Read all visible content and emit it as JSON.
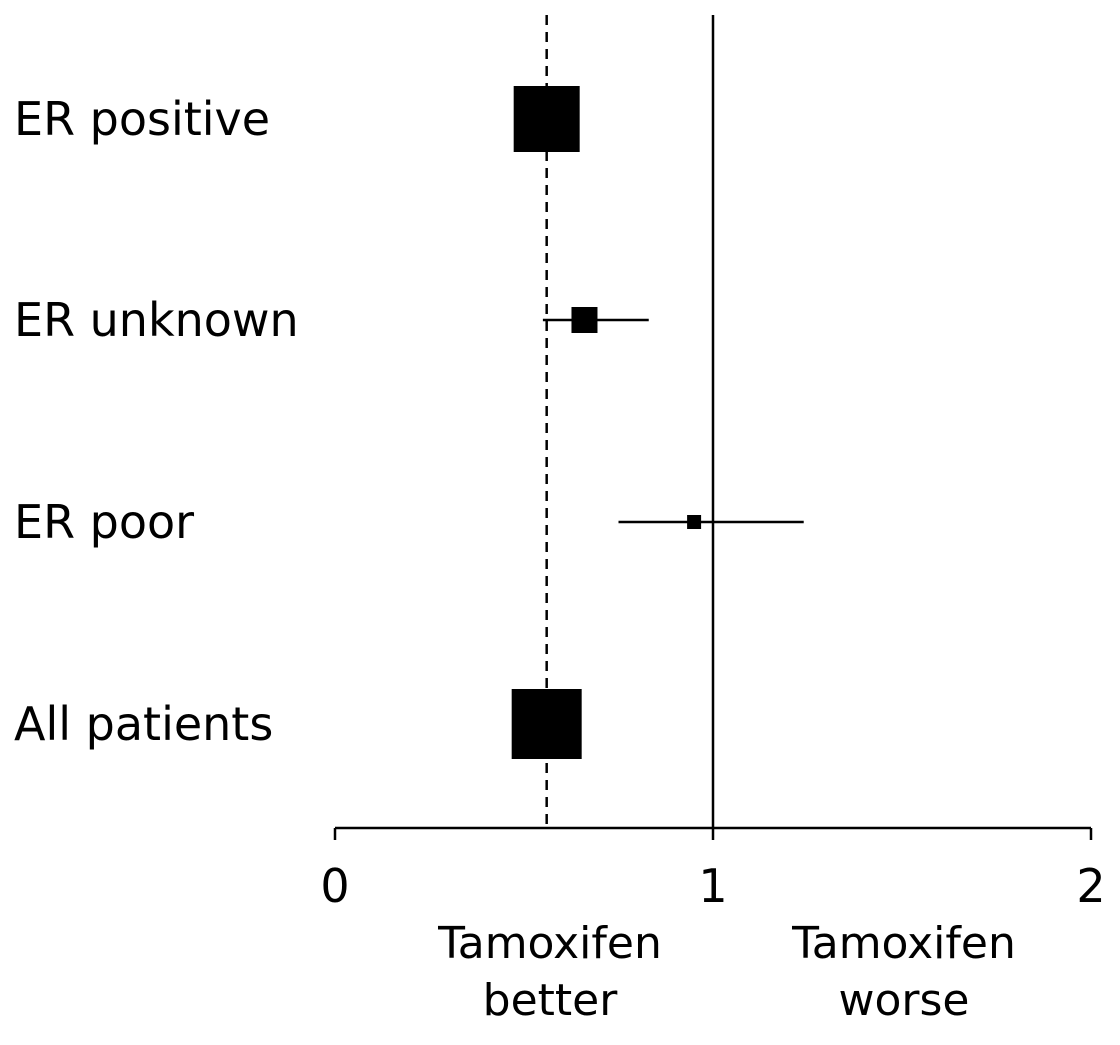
{
  "chart_data": {
    "type": "forest",
    "xlim": [
      0,
      2
    ],
    "ticks": [
      "0",
      "1",
      "2"
    ],
    "reference_line": 1,
    "pooled_line": 0.56,
    "rows": [
      {
        "label": "ER positive",
        "estimate": 0.56,
        "ci": [
          0.5,
          0.59
        ],
        "weight": "large"
      },
      {
        "label": "ER unknown",
        "estimate": 0.66,
        "ci": [
          0.55,
          0.83
        ],
        "weight": "medium"
      },
      {
        "label": "ER poor",
        "estimate": 0.95,
        "ci": [
          0.75,
          1.24
        ],
        "weight": "small"
      },
      {
        "label": "All patients",
        "estimate": 0.56,
        "ci": [
          0.5,
          0.62
        ],
        "weight": "largest"
      }
    ],
    "left_annotation": [
      "Tamoxifen",
      "better"
    ],
    "right_annotation": [
      "Tamoxifen",
      "worse"
    ]
  }
}
